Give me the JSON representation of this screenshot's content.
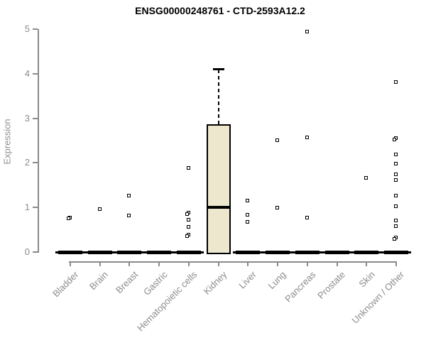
{
  "chart_data": {
    "type": "box",
    "title": "ENSG00000248761 - CTD-2593A12.2",
    "ylabel": "Expression",
    "xlabel": "",
    "ylim": [
      0,
      5
    ],
    "yticks": [
      0,
      1,
      2,
      3,
      4,
      5
    ],
    "grid": false,
    "legend": "none",
    "categories": [
      "Bladder",
      "Brain",
      "Breast",
      "Gastric",
      "Hematopoietic cells",
      "Kidney",
      "Liver",
      "Lung",
      "Pancreas",
      "Prostate",
      "Skin",
      "Unknown / Other"
    ],
    "boxes": [
      {
        "category": "Bladder",
        "q1": 0,
        "median": 0,
        "q3": 0,
        "whisker_low": 0,
        "whisker_high": 0,
        "collapsed": true
      },
      {
        "category": "Brain",
        "q1": 0,
        "median": 0,
        "q3": 0,
        "whisker_low": 0,
        "whisker_high": 0,
        "collapsed": true
      },
      {
        "category": "Breast",
        "q1": 0,
        "median": 0,
        "q3": 0,
        "whisker_low": 0,
        "whisker_high": 0,
        "collapsed": true
      },
      {
        "category": "Gastric",
        "q1": 0,
        "median": 0,
        "q3": 0,
        "whisker_low": 0,
        "whisker_high": 0,
        "collapsed": true
      },
      {
        "category": "Hematopoietic cells",
        "q1": 0,
        "median": 0,
        "q3": 0,
        "whisker_low": 0,
        "whisker_high": 0,
        "collapsed": true
      },
      {
        "category": "Kidney",
        "q1": 0,
        "median": 1.0,
        "q3": 2.87,
        "whisker_low": 0,
        "whisker_high": 4.1,
        "collapsed": false
      },
      {
        "category": "Liver",
        "q1": 0,
        "median": 0,
        "q3": 0,
        "whisker_low": 0,
        "whisker_high": 0,
        "collapsed": true
      },
      {
        "category": "Lung",
        "q1": 0,
        "median": 0,
        "q3": 0,
        "whisker_low": 0,
        "whisker_high": 0,
        "collapsed": true
      },
      {
        "category": "Pancreas",
        "q1": 0,
        "median": 0,
        "q3": 0,
        "whisker_low": 0,
        "whisker_high": 0,
        "collapsed": true
      },
      {
        "category": "Prostate",
        "q1": 0,
        "median": 0,
        "q3": 0,
        "whisker_low": 0,
        "whisker_high": 0,
        "collapsed": true
      },
      {
        "category": "Skin",
        "q1": 0,
        "median": 0,
        "q3": 0,
        "whisker_low": 0,
        "whisker_high": 0,
        "collapsed": true
      },
      {
        "category": "Unknown / Other",
        "q1": 0,
        "median": 0,
        "q3": 0,
        "whisker_low": 0,
        "whisker_high": 0,
        "collapsed": true
      }
    ],
    "outlier_points": {
      "Bladder": [
        {
          "value": 0.78,
          "count": 2
        }
      ],
      "Brain": [
        {
          "value": 0.97,
          "count": 1
        }
      ],
      "Breast": [
        {
          "value": 1.26,
          "count": 1
        },
        {
          "value": 0.82,
          "count": 1
        }
      ],
      "Gastric": [],
      "Hematopoietic cells": [
        {
          "value": 1.88,
          "count": 1
        },
        {
          "value": 0.88,
          "count": 2
        },
        {
          "value": 0.72,
          "count": 1
        },
        {
          "value": 0.56,
          "count": 1
        },
        {
          "value": 0.39,
          "count": 2
        }
      ],
      "Kidney": [],
      "Liver": [
        {
          "value": 1.16,
          "count": 1
        },
        {
          "value": 0.84,
          "count": 1
        },
        {
          "value": 0.67,
          "count": 1
        }
      ],
      "Lung": [
        {
          "value": 2.51,
          "count": 1
        },
        {
          "value": 1.0,
          "count": 1
        }
      ],
      "Pancreas": [
        {
          "value": 4.95,
          "count": 1
        },
        {
          "value": 2.57,
          "count": 1
        },
        {
          "value": 0.77,
          "count": 1
        }
      ],
      "Prostate": [],
      "Skin": [
        {
          "value": 1.66,
          "count": 1
        }
      ],
      "Unknown / Other": [
        {
          "value": 3.81,
          "count": 1
        },
        {
          "value": 2.55,
          "count": 2
        },
        {
          "value": 2.19,
          "count": 1
        },
        {
          "value": 1.98,
          "count": 1
        },
        {
          "value": 1.74,
          "count": 1
        },
        {
          "value": 1.62,
          "count": 1
        },
        {
          "value": 1.27,
          "count": 1
        },
        {
          "value": 1.03,
          "count": 1
        },
        {
          "value": 0.71,
          "count": 1
        },
        {
          "value": 0.58,
          "count": 1
        },
        {
          "value": 0.32,
          "count": 2
        }
      ]
    }
  },
  "colors": {
    "background": "#ffffff",
    "box_fill": "#ece7cd",
    "box_border": "#000000",
    "median": "#000000",
    "whisker": "#000000",
    "point": "#000000",
    "axis": "#8a8a8a",
    "tick_label": "#8c8c8c",
    "title": "#000000"
  }
}
